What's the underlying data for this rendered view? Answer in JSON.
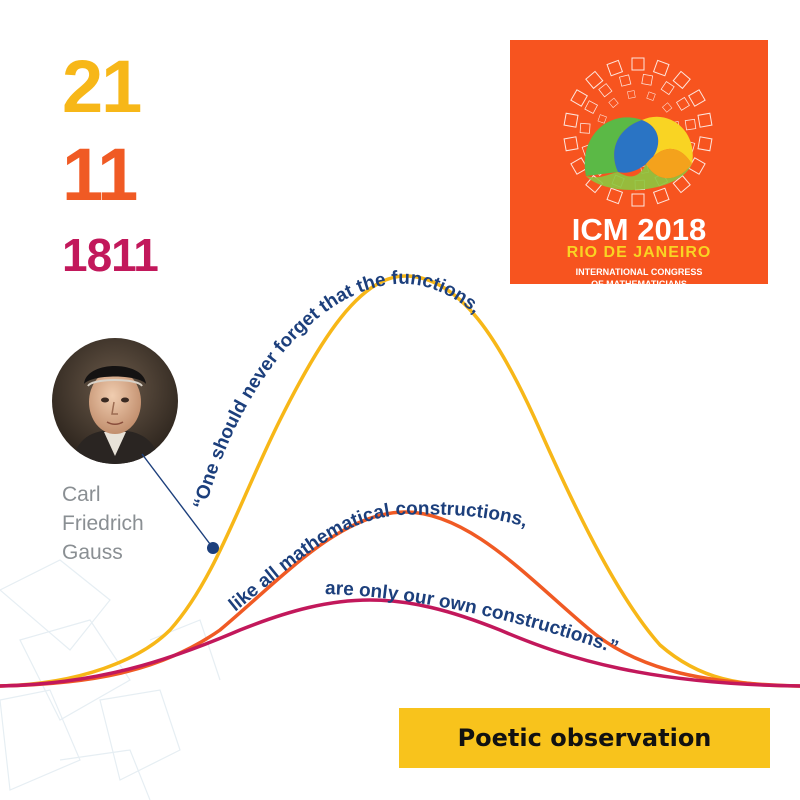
{
  "date": {
    "day": "21",
    "month": "11",
    "year": "1811"
  },
  "logo": {
    "event": "ICM 2018",
    "city": "RIO DE JANEIRO",
    "organization_line1": "INTERNATIONAL CONGRESS",
    "organization_line2": "OF MATHEMATICIANS",
    "colors": {
      "background": "#f7541f",
      "accent_yellow": "#f9d423",
      "accent_green": "#5bb946",
      "accent_blue": "#2a74c4"
    }
  },
  "person": {
    "first_name": "Carl",
    "middle_name": "Friedrich",
    "last_name": "Gauss",
    "portrait_icon": "portrait-photo"
  },
  "quote": {
    "line1": "“One should never forget that the functions,",
    "line2": "like all mathematical constructions,",
    "line3": "are only our own constructions.”"
  },
  "banner": {
    "label": "Poetic observation"
  },
  "colors": {
    "curve_yellow": "#f7b718",
    "curve_orange": "#f05a24",
    "curve_magenta": "#c2185b",
    "text_navy": "#1c3f7c",
    "banner_bg": "#f8c31c"
  }
}
